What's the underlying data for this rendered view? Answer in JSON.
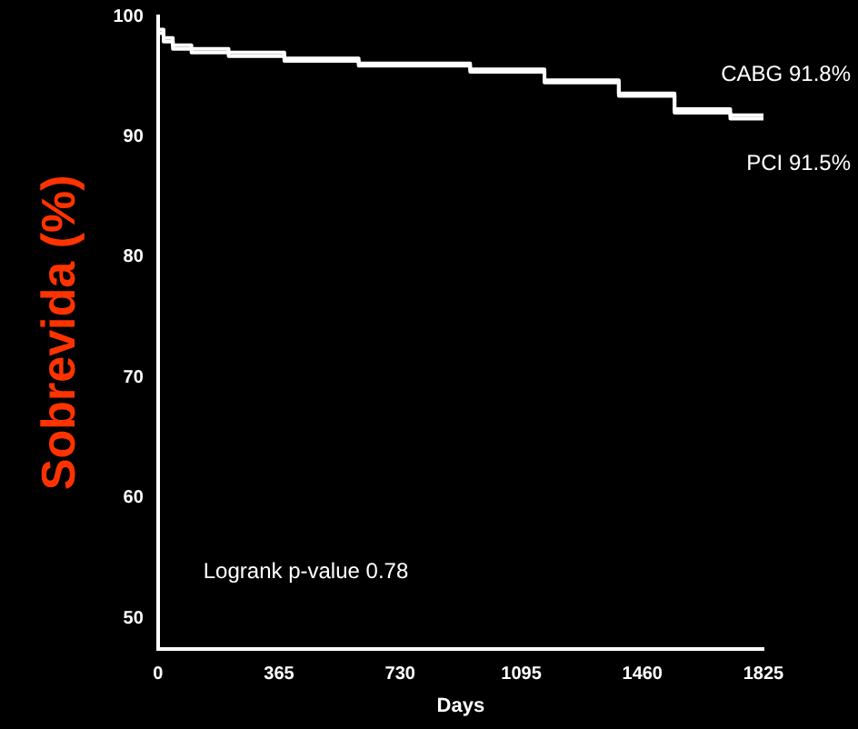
{
  "chart_data": {
    "type": "step",
    "ylabel": "Sobrevida (%)",
    "xlabel": "Days",
    "x": [
      0,
      17,
      45,
      101,
      213,
      381,
      605,
      941,
      1165,
      1389,
      1557,
      1725,
      1825
    ],
    "series": [
      {
        "name": "CABG 91.8%",
        "color": "#ffffff",
        "values": [
          100,
          98.9,
          98.2,
          97.6,
          97.3,
          97.0,
          96.5,
          96.1,
          95.6,
          94.7,
          93.6,
          92.3,
          91.8
        ]
      },
      {
        "name": "PCI 91.5%",
        "color": "#ffffff",
        "values": [
          100,
          98.6,
          97.9,
          97.3,
          97.0,
          96.7,
          96.3,
          95.9,
          95.4,
          94.5,
          93.4,
          92.0,
          91.5
        ]
      }
    ],
    "xlim": [
      0,
      1825
    ],
    "xticks": [
      0,
      365,
      730,
      1095,
      1460,
      1825
    ],
    "ylim": [
      47.5,
      100
    ],
    "yticks": [
      50,
      60,
      70,
      80,
      90,
      100
    ],
    "annotations": [
      "Logrank p-value 0.78"
    ],
    "grid": false,
    "legend": false,
    "marker": "none",
    "line_style": "solid"
  }
}
